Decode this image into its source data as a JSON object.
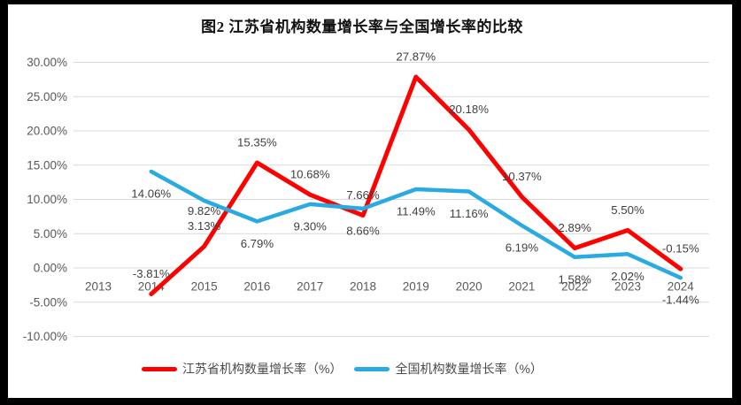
{
  "page": {
    "frame_color": "#000000",
    "canvas_color": "#ffffff"
  },
  "chart_data": {
    "type": "line",
    "title": "图2  江苏省机构数量增长率与全国增长率的比较",
    "categories": [
      "2013",
      "2014",
      "2015",
      "2016",
      "2017",
      "2018",
      "2019",
      "2020",
      "2021",
      "2022",
      "2023",
      "2024"
    ],
    "y_axis": {
      "ticks": [
        "30.00%",
        "25.00%",
        "20.00%",
        "15.00%",
        "10.00%",
        "5.00%",
        "0.00%",
        "-5.00%",
        "-10.00%"
      ],
      "tick_values": [
        30,
        25,
        20,
        15,
        10,
        5,
        0,
        -5,
        -10
      ],
      "min": -10,
      "max": 30,
      "grid": true,
      "grid_color": "#d9d9d9"
    },
    "series": [
      {
        "name": "江苏省机构数量增长率（%）",
        "color": "#FF0000",
        "label_position": "above",
        "values": [
          null,
          -3.81,
          3.13,
          15.35,
          10.68,
          7.66,
          27.87,
          20.18,
          10.37,
          2.89,
          5.5,
          -0.15
        ],
        "labels": [
          "",
          "-3.81%",
          "3.13%",
          "15.35%",
          "10.68%",
          "7.66%",
          "27.87%",
          "20.18%",
          "10.37%",
          "2.89%",
          "5.50%",
          "-0.15%"
        ]
      },
      {
        "name": "全国机构数量增长率（%）",
        "color": "#29ABE2",
        "label_position": "below",
        "values": [
          null,
          14.06,
          9.82,
          6.79,
          9.3,
          8.66,
          11.49,
          11.16,
          6.19,
          1.58,
          2.02,
          -1.44
        ],
        "labels": [
          "",
          "14.06%",
          "9.82%",
          "6.79%",
          "9.30%",
          "8.66%",
          "11.49%",
          "11.16%",
          "6.19%",
          "1.58%",
          "2.02%",
          "-1.44%"
        ]
      }
    ],
    "legend": {
      "position": "bottom",
      "entries": [
        "江苏省机构数量增长率（%）",
        "全国机构数量增长率（%）"
      ]
    }
  }
}
